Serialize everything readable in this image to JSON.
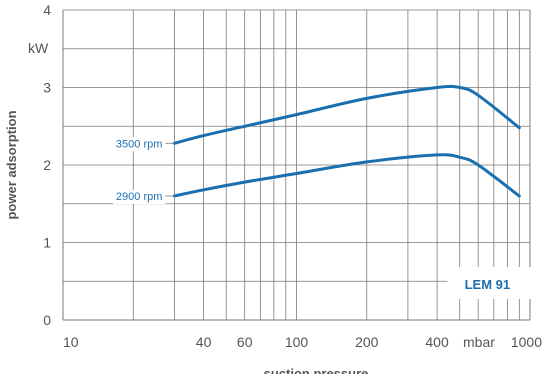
{
  "chart_data": {
    "type": "line",
    "xlabel": "suction pressure",
    "x_unit": "mbar",
    "ylabel": "power adsorption",
    "y_unit": "kW",
    "xscale": "log",
    "xlim": [
      10,
      1000
    ],
    "ylim": [
      0,
      4
    ],
    "x_tick_labels": [
      "10",
      "40",
      "60",
      "100",
      "200",
      "400",
      "1000"
    ],
    "y_tick_labels": [
      "0",
      "1",
      "2",
      "3",
      "4"
    ],
    "grid": true,
    "annotation": "LEM 91",
    "series": [
      {
        "name": "3500 rpm",
        "x": [
          30,
          40,
          60,
          100,
          200,
          400,
          500,
          600,
          900
        ],
        "y": [
          2.28,
          2.38,
          2.5,
          2.65,
          2.86,
          3.0,
          3.0,
          2.9,
          2.48
        ]
      },
      {
        "name": "2900 rpm",
        "x": [
          30,
          40,
          60,
          100,
          200,
          400,
          500,
          600,
          900
        ],
        "y": [
          1.6,
          1.68,
          1.78,
          1.89,
          2.04,
          2.13,
          2.1,
          2.0,
          1.6
        ]
      }
    ],
    "colors": {
      "series": "#1a6fb0",
      "grid": "#7a7a7a",
      "text": "#555555"
    }
  }
}
